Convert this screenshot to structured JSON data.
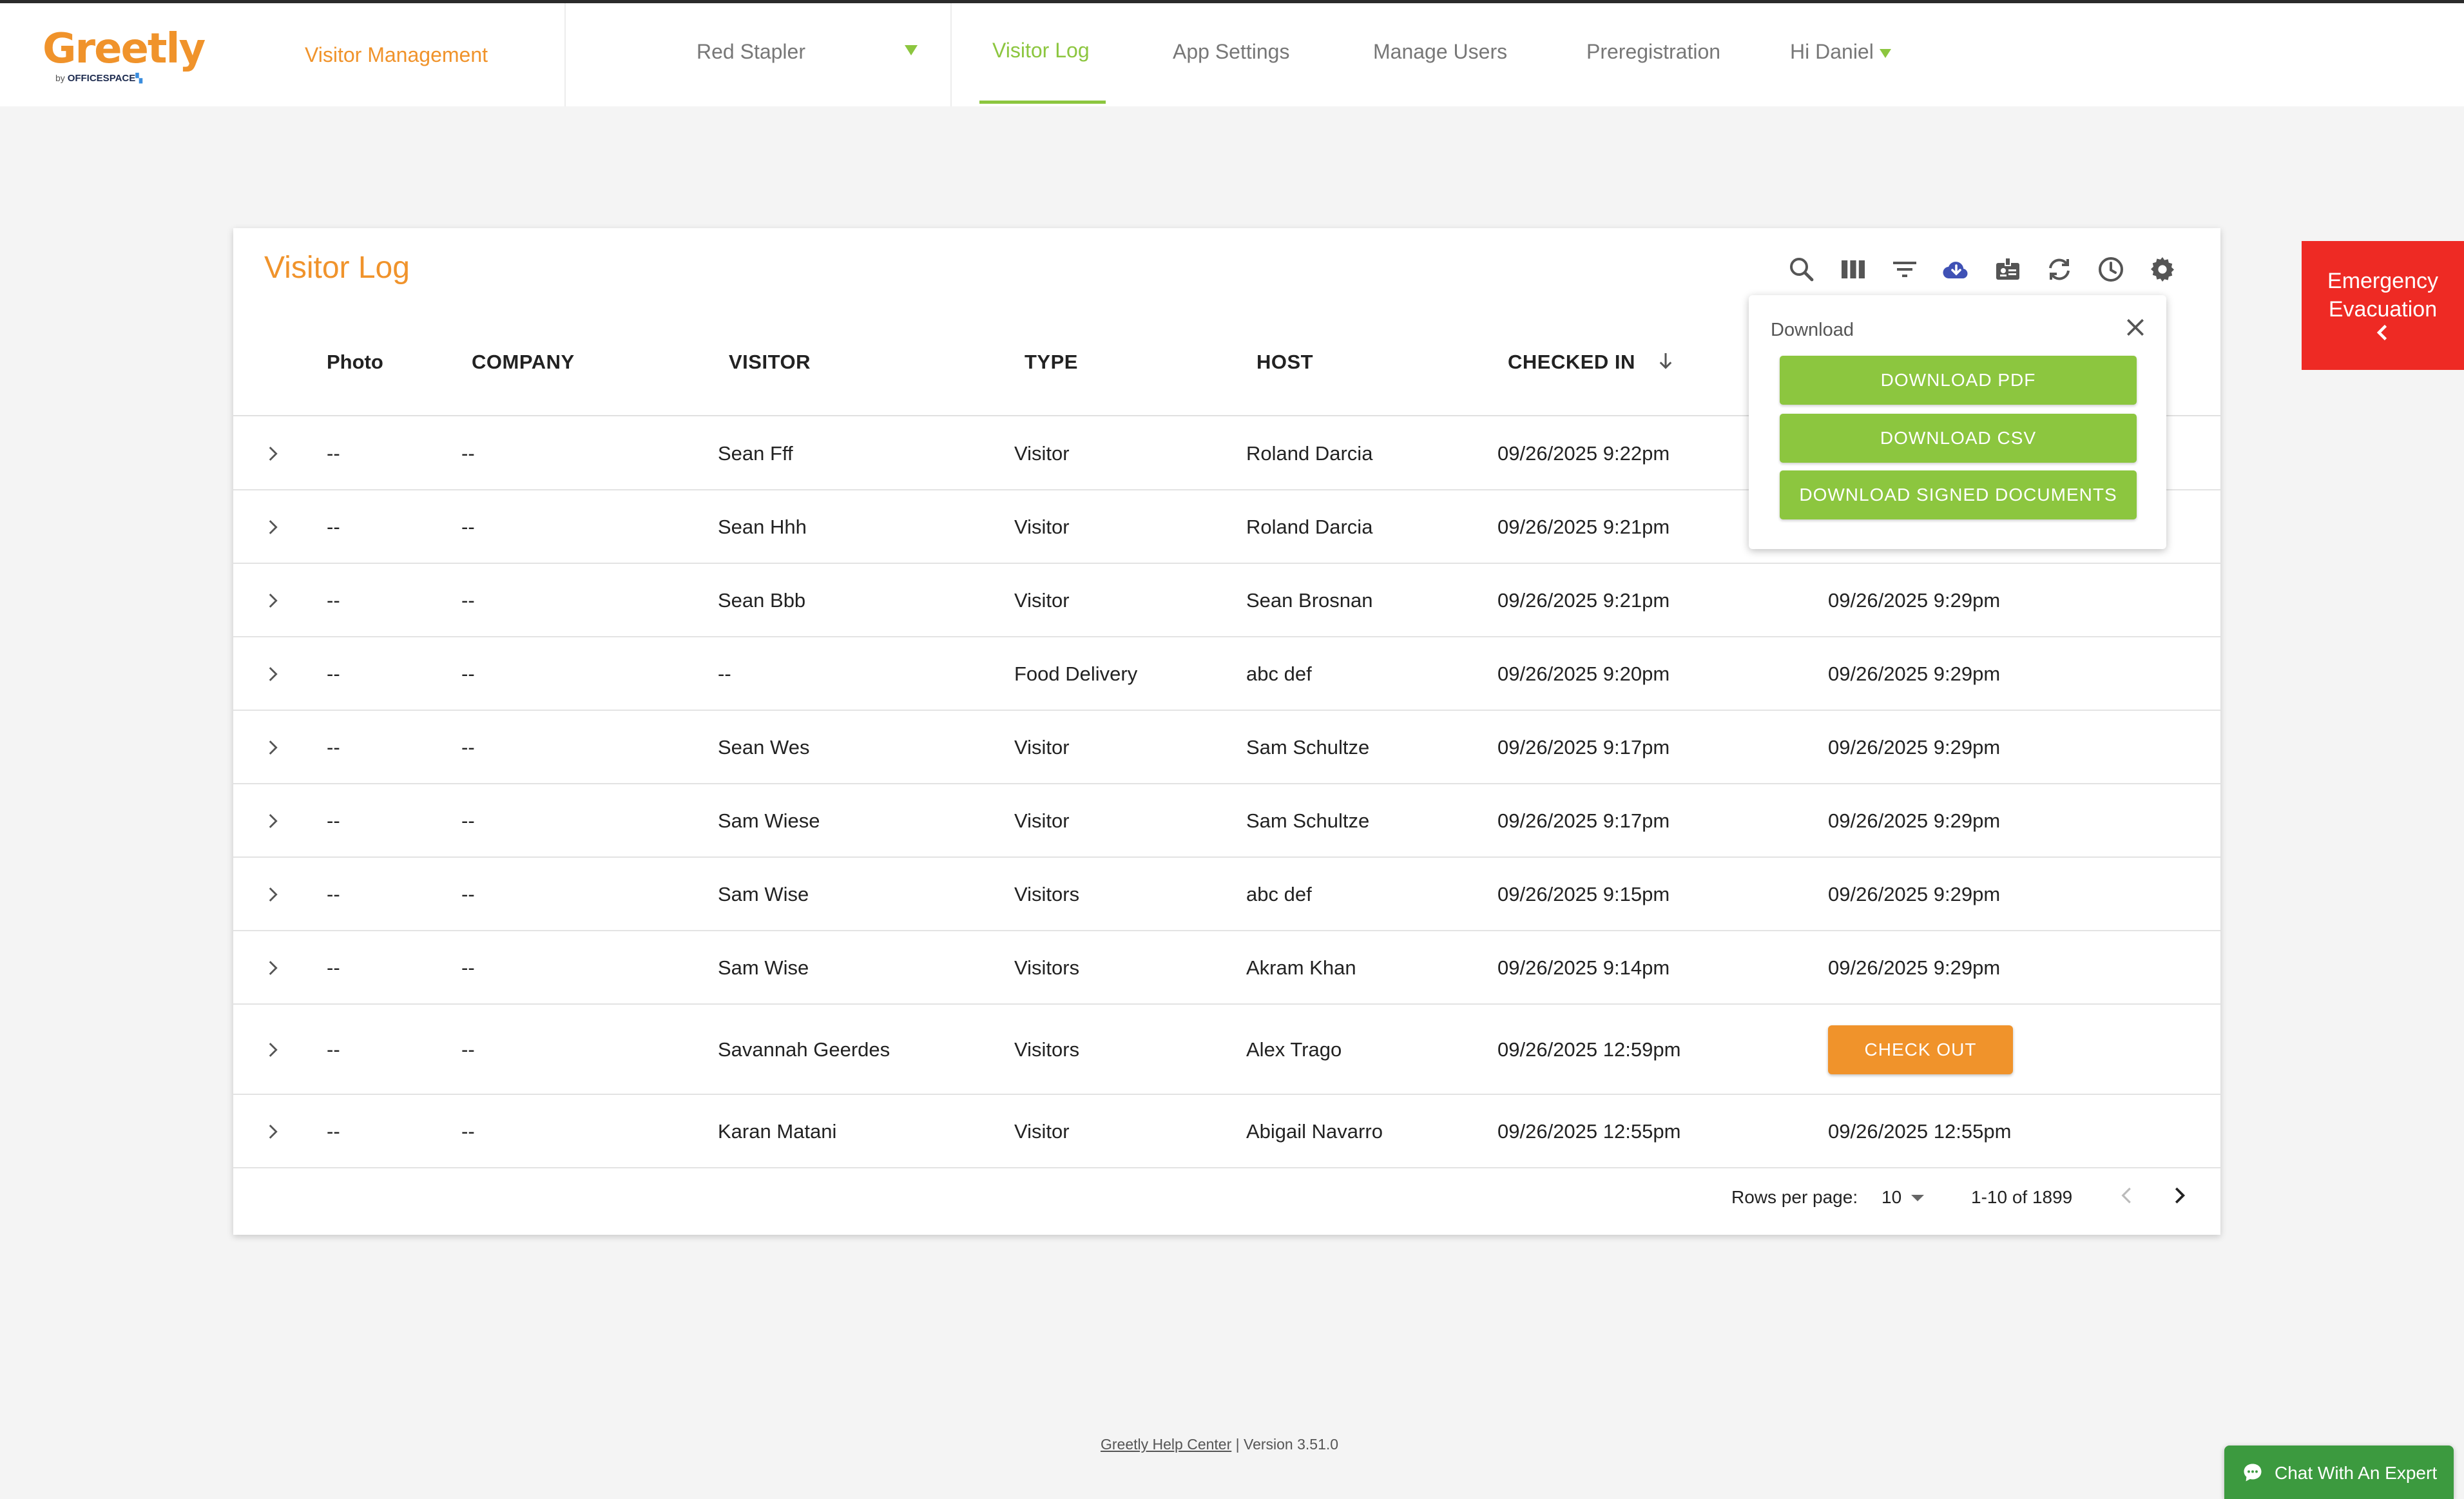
{
  "header": {
    "logo_word": "Greetly",
    "logo_by": "by",
    "logo_brand": "OFFICESPACE",
    "product": "Visitor Management",
    "location": "Red Stapler",
    "nav": [
      {
        "label": "Visitor Log",
        "active": true
      },
      {
        "label": "App Settings",
        "active": false
      },
      {
        "label": "Manage Users",
        "active": false
      },
      {
        "label": "Preregistration",
        "active": false
      }
    ],
    "user_greeting": "Hi Daniel"
  },
  "card": {
    "title": "Visitor Log",
    "toolbar_icons": [
      "search-icon",
      "columns-icon",
      "filter-icon",
      "cloud-download-icon",
      "badge-icon",
      "refresh-icon",
      "history-icon",
      "settings-icon"
    ],
    "columns": [
      "Photo",
      "COMPANY",
      "VISITOR",
      "TYPE",
      "HOST",
      "CHECKED IN"
    ],
    "rows": [
      {
        "photo": "--",
        "company": "--",
        "visitor": "Sean Fff",
        "type": "Visitor",
        "host": "Roland Darcia",
        "checked_in": "09/26/2025 9:22pm",
        "checked_out": ""
      },
      {
        "photo": "--",
        "company": "--",
        "visitor": "Sean Hhh",
        "type": "Visitor",
        "host": "Roland Darcia",
        "checked_in": "09/26/2025 9:21pm",
        "checked_out": ""
      },
      {
        "photo": "--",
        "company": "--",
        "visitor": "Sean Bbb",
        "type": "Visitor",
        "host": "Sean Brosnan",
        "checked_in": "09/26/2025 9:21pm",
        "checked_out": "09/26/2025 9:29pm"
      },
      {
        "photo": "--",
        "company": "--",
        "visitor": "--",
        "type": "Food Delivery",
        "host": "abc def",
        "checked_in": "09/26/2025 9:20pm",
        "checked_out": "09/26/2025 9:29pm"
      },
      {
        "photo": "--",
        "company": "--",
        "visitor": "Sean Wes",
        "type": "Visitor",
        "host": "Sam Schultze",
        "checked_in": "09/26/2025 9:17pm",
        "checked_out": "09/26/2025 9:29pm"
      },
      {
        "photo": "--",
        "company": "--",
        "visitor": "Sam Wiese",
        "type": "Visitor",
        "host": "Sam Schultze",
        "checked_in": "09/26/2025 9:17pm",
        "checked_out": "09/26/2025 9:29pm"
      },
      {
        "photo": "--",
        "company": "--",
        "visitor": "Sam Wise",
        "type": "Visitors",
        "host": "abc def",
        "checked_in": "09/26/2025 9:15pm",
        "checked_out": "09/26/2025 9:29pm"
      },
      {
        "photo": "--",
        "company": "--",
        "visitor": "Sam Wise",
        "type": "Visitors",
        "host": "Akram Khan",
        "checked_in": "09/26/2025 9:14pm",
        "checked_out": "09/26/2025 9:29pm"
      },
      {
        "photo": "--",
        "company": "--",
        "visitor": "Savannah Geerdes",
        "type": "Visitors",
        "host": "Alex Trago",
        "checked_in": "09/26/2025 12:59pm",
        "checked_out": "",
        "checkout_button": "CHECK OUT"
      },
      {
        "photo": "--",
        "company": "--",
        "visitor": "Karan Matani",
        "type": "Visitor",
        "host": "Abigail Navarro",
        "checked_in": "09/26/2025 12:55pm",
        "checked_out": "09/26/2025 12:55pm"
      }
    ],
    "pagination": {
      "rows_per_page_label": "Rows per page:",
      "rows_per_page": "10",
      "range": "1-10 of 1899"
    }
  },
  "download_popover": {
    "title": "Download",
    "buttons": [
      "DOWNLOAD PDF",
      "DOWNLOAD CSV",
      "DOWNLOAD SIGNED DOCUMENTS"
    ]
  },
  "emergency": {
    "line1": "Emergency",
    "line2": "Evacuation"
  },
  "footer": {
    "help_link": "Greetly Help Center",
    "version": " | Version 3.51.0"
  },
  "chat": {
    "label": "Chat With An Expert"
  },
  "colors": {
    "brand_orange": "#f0932b",
    "brand_green": "#8cc63f",
    "emergency_red": "#ee2a24",
    "chat_green": "#3c9a3f"
  }
}
